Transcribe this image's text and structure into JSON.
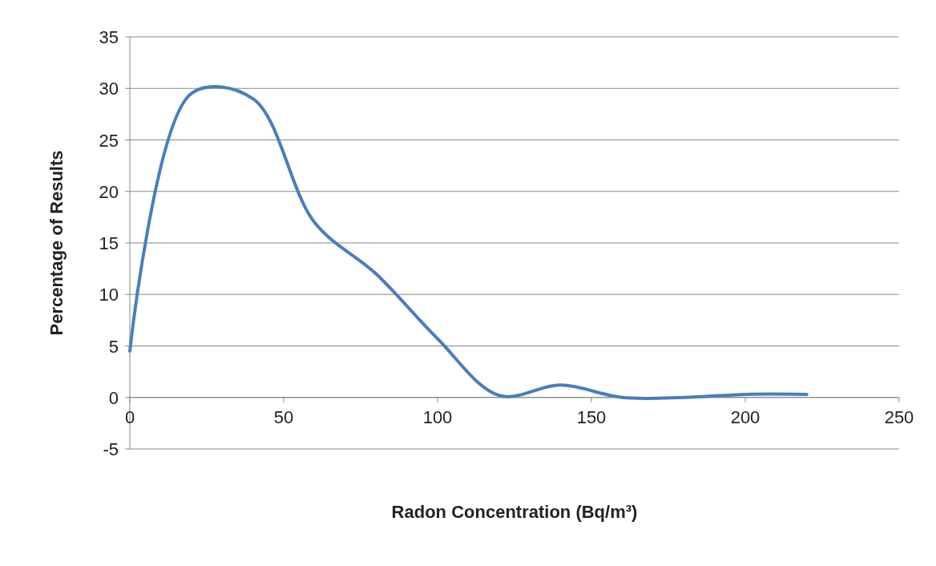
{
  "chart_data": {
    "type": "line",
    "xlabel": "Radon Concentration (Bq/m³)",
    "ylabel": "Percentage of Results",
    "x": [
      0,
      20,
      40,
      60,
      80,
      100,
      120,
      140,
      160,
      180,
      200,
      220
    ],
    "series": [
      {
        "color": "#4a7ebb",
        "values": [
          4.5,
          29.5,
          29,
          17,
          12,
          5.7,
          0.2,
          1.2,
          0,
          0,
          0.3,
          0.3
        ]
      }
    ],
    "xlim": [
      0,
      250
    ],
    "xticks": [
      0,
      50,
      100,
      150,
      200,
      250
    ],
    "ylim": [
      -5,
      35
    ],
    "yticks": [
      -5,
      0,
      5,
      10,
      15,
      20,
      25,
      30,
      35
    ],
    "grid": "y",
    "marker": "none",
    "line_style": "solid"
  }
}
